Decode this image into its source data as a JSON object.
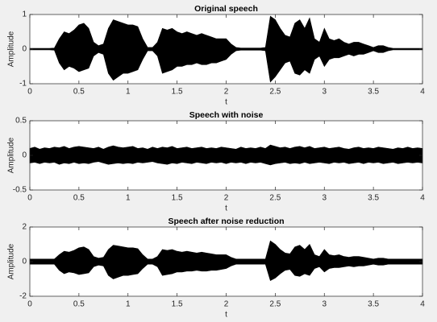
{
  "chart_data": [
    {
      "type": "area",
      "title": "Original speech",
      "xlabel": "t",
      "ylabel": "Amplitude",
      "xlim": [
        0,
        4
      ],
      "xticks": [
        0,
        0.5,
        1,
        1.5,
        2,
        2.5,
        3,
        3.5,
        4
      ],
      "ylim": [
        -1,
        1
      ],
      "yticks": [
        -1,
        0,
        1
      ],
      "x": [
        0,
        0.05,
        0.1,
        0.15,
        0.2,
        0.25,
        0.3,
        0.35,
        0.4,
        0.45,
        0.5,
        0.55,
        0.6,
        0.65,
        0.7,
        0.75,
        0.8,
        0.85,
        0.9,
        0.95,
        1,
        1.05,
        1.1,
        1.15,
        1.2,
        1.25,
        1.3,
        1.35,
        1.4,
        1.45,
        1.5,
        1.55,
        1.6,
        1.65,
        1.7,
        1.75,
        1.8,
        1.85,
        1.9,
        1.95,
        2,
        2.05,
        2.1,
        2.15,
        2.2,
        2.25,
        2.3,
        2.35,
        2.4,
        2.45,
        2.5,
        2.55,
        2.6,
        2.65,
        2.7,
        2.75,
        2.8,
        2.85,
        2.9,
        2.95,
        3,
        3.05,
        3.1,
        3.15,
        3.2,
        3.25,
        3.3,
        3.35,
        3.4,
        3.45,
        3.5,
        3.55,
        3.6,
        3.65,
        3.7,
        3.75,
        3.8,
        3.85,
        3.9,
        3.95,
        4
      ],
      "series": [
        {
          "color": "#000000",
          "values": [
            0.02,
            0.02,
            0.02,
            0.02,
            0.02,
            0.03,
            0.3,
            0.5,
            0.45,
            0.55,
            0.7,
            0.75,
            0.6,
            0.2,
            0.1,
            0.15,
            0.6,
            0.85,
            0.8,
            0.75,
            0.7,
            0.7,
            0.65,
            0.3,
            0.05,
            0.05,
            0.2,
            0.6,
            0.55,
            0.6,
            0.5,
            0.45,
            0.5,
            0.45,
            0.4,
            0.45,
            0.4,
            0.35,
            0.3,
            0.3,
            0.3,
            0.15,
            0.05,
            0.03,
            0.03,
            0.03,
            0.03,
            0.03,
            0.05,
            0.95,
            0.85,
            0.6,
            0.4,
            0.35,
            0.75,
            0.85,
            0.6,
            0.9,
            0.3,
            0.2,
            0.6,
            0.3,
            0.25,
            0.3,
            0.2,
            0.15,
            0.2,
            0.2,
            0.15,
            0.1,
            0.05,
            0.1,
            0.1,
            0.05,
            0.02,
            0.02,
            0.02,
            0.02,
            0.02,
            0.02,
            0.02
          ]
        },
        {
          "color": "#000000",
          "values": [
            -0.02,
            -0.02,
            -0.02,
            -0.02,
            -0.02,
            -0.03,
            -0.4,
            -0.6,
            -0.5,
            -0.55,
            -0.65,
            -0.6,
            -0.55,
            -0.2,
            -0.1,
            -0.15,
            -0.7,
            -0.9,
            -0.8,
            -0.7,
            -0.7,
            -0.65,
            -0.6,
            -0.3,
            -0.05,
            -0.05,
            -0.2,
            -0.7,
            -0.65,
            -0.6,
            -0.5,
            -0.5,
            -0.45,
            -0.45,
            -0.4,
            -0.45,
            -0.45,
            -0.4,
            -0.4,
            -0.35,
            -0.3,
            -0.15,
            -0.05,
            -0.03,
            -0.03,
            -0.03,
            -0.03,
            -0.03,
            -0.05,
            -0.95,
            -0.8,
            -0.6,
            -0.4,
            -0.35,
            -0.7,
            -0.75,
            -0.6,
            -0.7,
            -0.3,
            -0.2,
            -0.5,
            -0.3,
            -0.25,
            -0.25,
            -0.2,
            -0.15,
            -0.2,
            -0.15,
            -0.15,
            -0.1,
            -0.05,
            -0.1,
            -0.1,
            -0.05,
            -0.02,
            -0.02,
            -0.02,
            -0.02,
            -0.02,
            -0.02,
            -0.02
          ]
        }
      ]
    },
    {
      "type": "area",
      "title": "Speech with noise",
      "xlabel": "t",
      "ylabel": "Amplitude",
      "xlim": [
        0,
        4
      ],
      "xticks": [
        0,
        0.5,
        1,
        1.5,
        2,
        2.5,
        3,
        3.5,
        4
      ],
      "ylim": [
        -0.5,
        0.5
      ],
      "yticks": [
        -0.5,
        0,
        0.5
      ],
      "x": [
        0,
        0.05,
        0.1,
        0.15,
        0.2,
        0.25,
        0.3,
        0.35,
        0.4,
        0.45,
        0.5,
        0.55,
        0.6,
        0.65,
        0.7,
        0.75,
        0.8,
        0.85,
        0.9,
        0.95,
        1,
        1.05,
        1.1,
        1.15,
        1.2,
        1.25,
        1.3,
        1.35,
        1.4,
        1.45,
        1.5,
        1.55,
        1.6,
        1.65,
        1.7,
        1.75,
        1.8,
        1.85,
        1.9,
        1.95,
        2,
        2.05,
        2.1,
        2.15,
        2.2,
        2.25,
        2.3,
        2.35,
        2.4,
        2.45,
        2.5,
        2.55,
        2.6,
        2.65,
        2.7,
        2.75,
        2.8,
        2.85,
        2.9,
        2.95,
        3,
        3.05,
        3.1,
        3.15,
        3.2,
        3.25,
        3.3,
        3.35,
        3.4,
        3.45,
        3.5,
        3.55,
        3.6,
        3.65,
        3.7,
        3.75,
        3.8,
        3.85,
        3.9,
        3.95,
        4
      ],
      "series": [
        {
          "color": "#000000",
          "values": [
            0.1,
            0.12,
            0.09,
            0.11,
            0.1,
            0.12,
            0.11,
            0.13,
            0.1,
            0.12,
            0.13,
            0.12,
            0.11,
            0.1,
            0.12,
            0.09,
            0.12,
            0.14,
            0.12,
            0.11,
            0.12,
            0.13,
            0.1,
            0.11,
            0.09,
            0.12,
            0.1,
            0.12,
            0.11,
            0.13,
            0.1,
            0.11,
            0.12,
            0.1,
            0.11,
            0.12,
            0.1,
            0.11,
            0.1,
            0.12,
            0.11,
            0.1,
            0.09,
            0.12,
            0.1,
            0.11,
            0.1,
            0.12,
            0.1,
            0.15,
            0.13,
            0.11,
            0.12,
            0.1,
            0.12,
            0.13,
            0.11,
            0.13,
            0.1,
            0.11,
            0.12,
            0.1,
            0.11,
            0.12,
            0.1,
            0.09,
            0.11,
            0.12,
            0.1,
            0.11,
            0.1,
            0.12,
            0.11,
            0.1,
            0.09,
            0.11,
            0.1,
            0.12,
            0.1,
            0.11,
            0.1
          ]
        },
        {
          "color": "#000000",
          "values": [
            -0.11,
            -0.1,
            -0.12,
            -0.1,
            -0.11,
            -0.1,
            -0.13,
            -0.11,
            -0.12,
            -0.1,
            -0.12,
            -0.11,
            -0.12,
            -0.1,
            -0.09,
            -0.11,
            -0.13,
            -0.12,
            -0.11,
            -0.12,
            -0.11,
            -0.12,
            -0.1,
            -0.11,
            -0.1,
            -0.09,
            -0.11,
            -0.12,
            -0.13,
            -0.11,
            -0.12,
            -0.1,
            -0.11,
            -0.12,
            -0.1,
            -0.11,
            -0.12,
            -0.1,
            -0.11,
            -0.1,
            -0.12,
            -0.1,
            -0.11,
            -0.1,
            -0.12,
            -0.1,
            -0.11,
            -0.1,
            -0.12,
            -0.14,
            -0.12,
            -0.11,
            -0.1,
            -0.12,
            -0.11,
            -0.12,
            -0.1,
            -0.12,
            -0.11,
            -0.1,
            -0.11,
            -0.12,
            -0.1,
            -0.11,
            -0.1,
            -0.12,
            -0.11,
            -0.1,
            -0.12,
            -0.1,
            -0.11,
            -0.1,
            -0.12,
            -0.11,
            -0.1,
            -0.12,
            -0.11,
            -0.1,
            -0.11,
            -0.1,
            -0.11
          ]
        }
      ]
    },
    {
      "type": "area",
      "title": "Speech after noise reduction",
      "xlabel": "t",
      "ylabel": "Amplitude",
      "xlim": [
        0,
        4
      ],
      "xticks": [
        0,
        0.5,
        1,
        1.5,
        2,
        2.5,
        3,
        3.5,
        4
      ],
      "ylim": [
        -2,
        2
      ],
      "yticks": [
        -2,
        0,
        2
      ],
      "x": [
        0,
        0.05,
        0.1,
        0.15,
        0.2,
        0.25,
        0.3,
        0.35,
        0.4,
        0.45,
        0.5,
        0.55,
        0.6,
        0.65,
        0.7,
        0.75,
        0.8,
        0.85,
        0.9,
        0.95,
        1,
        1.05,
        1.1,
        1.15,
        1.2,
        1.25,
        1.3,
        1.35,
        1.4,
        1.45,
        1.5,
        1.55,
        1.6,
        1.65,
        1.7,
        1.75,
        1.8,
        1.85,
        1.9,
        1.95,
        2,
        2.05,
        2.1,
        2.15,
        2.2,
        2.25,
        2.3,
        2.35,
        2.4,
        2.45,
        2.5,
        2.55,
        2.6,
        2.65,
        2.7,
        2.75,
        2.8,
        2.85,
        2.9,
        2.95,
        3,
        3.05,
        3.1,
        3.15,
        3.2,
        3.25,
        3.3,
        3.35,
        3.4,
        3.45,
        3.5,
        3.55,
        3.6,
        3.65,
        3.7,
        3.75,
        3.8,
        3.85,
        3.9,
        3.95,
        4
      ],
      "series": [
        {
          "color": "#000000",
          "values": [
            0.15,
            0.15,
            0.15,
            0.15,
            0.15,
            0.15,
            0.4,
            0.6,
            0.55,
            0.65,
            0.8,
            0.85,
            0.7,
            0.3,
            0.2,
            0.25,
            0.7,
            0.95,
            0.9,
            0.85,
            0.8,
            0.8,
            0.75,
            0.4,
            0.15,
            0.15,
            0.3,
            0.7,
            0.65,
            0.7,
            0.6,
            0.55,
            0.6,
            0.55,
            0.5,
            0.55,
            0.5,
            0.45,
            0.4,
            0.4,
            0.4,
            0.25,
            0.15,
            0.15,
            0.15,
            0.15,
            0.15,
            0.15,
            0.15,
            1.2,
            1,
            0.7,
            0.5,
            0.45,
            0.85,
            0.95,
            0.7,
            1,
            0.4,
            0.3,
            0.7,
            0.4,
            0.35,
            0.4,
            0.3,
            0.25,
            0.3,
            0.3,
            0.25,
            0.2,
            0.15,
            0.2,
            0.2,
            0.15,
            0.15,
            0.15,
            0.15,
            0.15,
            0.15,
            0.15,
            0.15
          ]
        },
        {
          "color": "#000000",
          "values": [
            -0.15,
            -0.15,
            -0.15,
            -0.15,
            -0.15,
            -0.15,
            -0.5,
            -0.7,
            -0.6,
            -0.65,
            -0.75,
            -0.7,
            -0.65,
            -0.3,
            -0.2,
            -0.25,
            -0.8,
            -1,
            -0.9,
            -0.8,
            -0.8,
            -0.75,
            -0.7,
            -0.4,
            -0.15,
            -0.15,
            -0.3,
            -0.8,
            -0.75,
            -0.7,
            -0.6,
            -0.6,
            -0.55,
            -0.55,
            -0.5,
            -0.55,
            -0.55,
            -0.5,
            -0.5,
            -0.45,
            -0.4,
            -0.25,
            -0.15,
            -0.15,
            -0.15,
            -0.15,
            -0.15,
            -0.15,
            -0.15,
            -1.1,
            -0.95,
            -0.7,
            -0.5,
            -0.45,
            -0.8,
            -0.85,
            -0.7,
            -0.8,
            -0.4,
            -0.3,
            -0.6,
            -0.4,
            -0.35,
            -0.35,
            -0.3,
            -0.25,
            -0.3,
            -0.25,
            -0.25,
            -0.2,
            -0.15,
            -0.2,
            -0.2,
            -0.15,
            -0.15,
            -0.15,
            -0.15,
            -0.15,
            -0.15,
            -0.15,
            -0.15
          ]
        }
      ]
    }
  ]
}
